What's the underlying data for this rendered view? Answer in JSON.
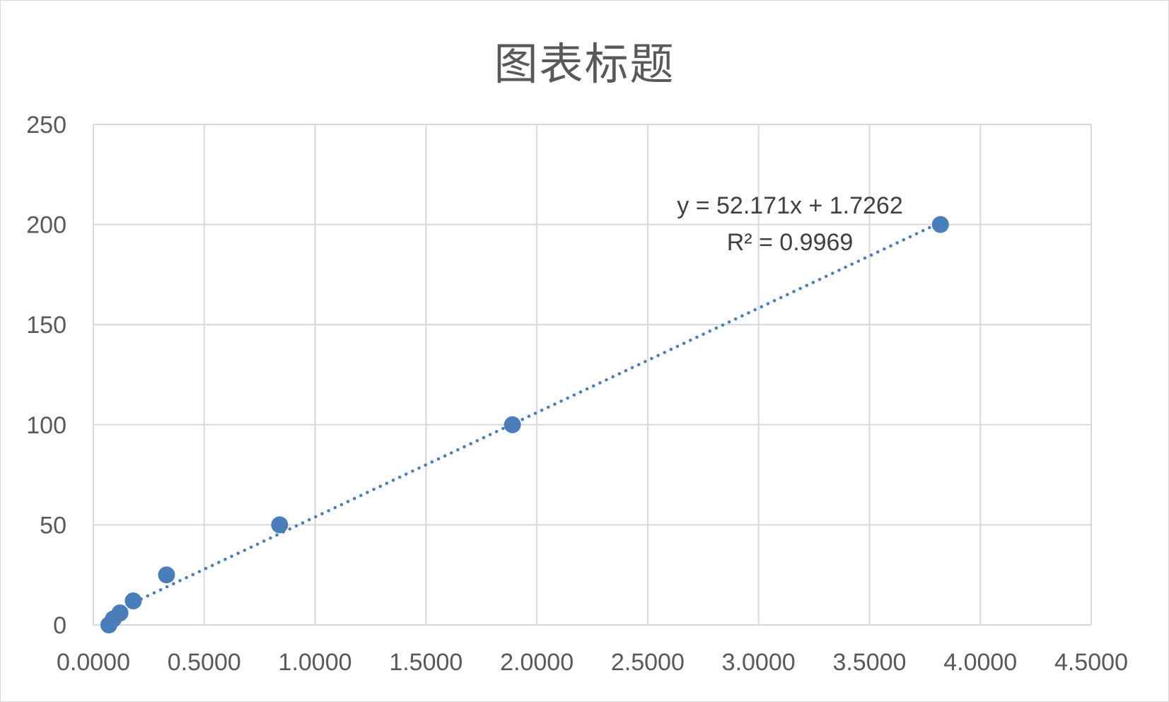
{
  "chart_data": {
    "type": "scatter",
    "title": "图表标题",
    "xlabel": "",
    "ylabel": "",
    "xlim": [
      0,
      4.5
    ],
    "ylim": [
      0,
      250
    ],
    "x_ticks": [
      "0.0000",
      "0.5000",
      "1.0000",
      "1.5000",
      "2.0000",
      "2.5000",
      "3.0000",
      "3.5000",
      "4.0000",
      "4.5000"
    ],
    "y_ticks": [
      "0",
      "50",
      "100",
      "150",
      "200",
      "250"
    ],
    "grid": true,
    "legend": "none",
    "points": [
      {
        "x": 0.07,
        "y": 0
      },
      {
        "x": 0.09,
        "y": 3
      },
      {
        "x": 0.12,
        "y": 6
      },
      {
        "x": 0.18,
        "y": 12
      },
      {
        "x": 0.33,
        "y": 25
      },
      {
        "x": 0.84,
        "y": 50
      },
      {
        "x": 1.89,
        "y": 100
      },
      {
        "x": 3.82,
        "y": 200
      }
    ],
    "trendline": {
      "type": "linear",
      "style": "dotted",
      "slope": 52.171,
      "intercept": 1.7262,
      "x_range": [
        0.07,
        3.82
      ],
      "equation_label": "y = 52.171x + 1.7262",
      "r2_label": "R² = 0.9969"
    },
    "colors": {
      "marker": "#4a7ebb",
      "trendline": "#4a7ebb",
      "grid": "#d9d9d9",
      "text": "#595959"
    }
  }
}
